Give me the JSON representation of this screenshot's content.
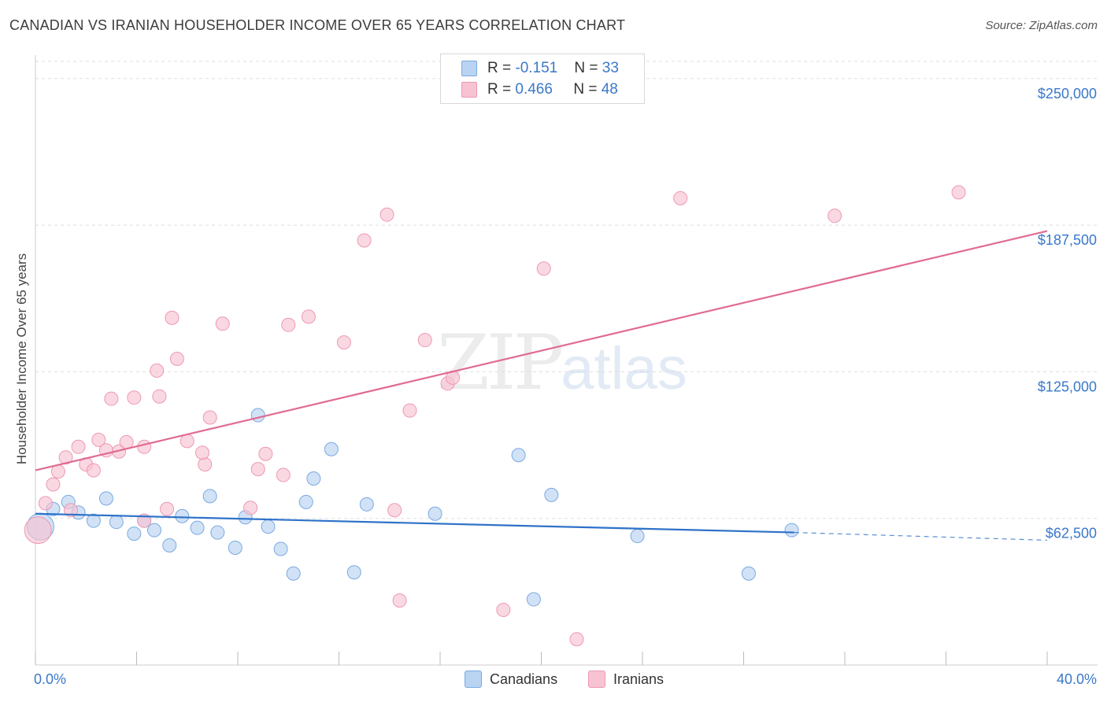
{
  "title": "CANADIAN VS IRANIAN HOUSEHOLDER INCOME OVER 65 YEARS CORRELATION CHART",
  "source": "Source: ZipAtlas.com",
  "watermark": {
    "zip": "ZIP",
    "atlas": "atlas"
  },
  "legend": {
    "rows": [
      {
        "r_label": "R = ",
        "r_value": "-0.151",
        "n_label": "N = ",
        "n_value": "33"
      },
      {
        "r_label": "R = ",
        "r_value": "0.466",
        "n_label": "N = ",
        "n_value": "48"
      }
    ]
  },
  "bottom_legend": {
    "canadians": "Canadians",
    "iranians": "Iranians"
  },
  "colors": {
    "canadian_fill": "#b9d3f2",
    "canadian_stroke": "#7aaae0",
    "canadian_line": "#2e72c8",
    "iranian_fill": "#f7c3d2",
    "iranian_stroke": "#ee98b2",
    "iranian_line": "#e06b93",
    "value_text": "#3a78c9",
    "grid": "#dddddd"
  },
  "chart_data": {
    "type": "scatter",
    "title": "CANADIAN VS IRANIAN HOUSEHOLDER INCOME OVER 65 YEARS CORRELATION CHART",
    "xlabel": "",
    "ylabel": "Householder Income Over 65 years",
    "x_unit": "%",
    "xlim": [
      0,
      40
    ],
    "ylim": [
      0,
      260000
    ],
    "x_tick_labels": [
      "0.0%",
      "40.0%"
    ],
    "y_ticks": [
      62500,
      125000,
      187500,
      250000
    ],
    "y_tick_labels": [
      "$62,500",
      "$125,000",
      "$187,500",
      "$250,000"
    ],
    "series": [
      {
        "name": "Canadians",
        "r": -0.151,
        "n": 33,
        "trend": {
          "x0": 0,
          "y0": 64500,
          "x1": 30,
          "y1": 56500,
          "dashed_to_x": 40,
          "dashed_to_y": 53200
        },
        "points": [
          {
            "x": 0.2,
            "y": 59000,
            "big": true
          },
          {
            "x": 0.7,
            "y": 66500
          },
          {
            "x": 1.3,
            "y": 69500
          },
          {
            "x": 1.7,
            "y": 65000
          },
          {
            "x": 2.3,
            "y": 61500
          },
          {
            "x": 2.8,
            "y": 71000
          },
          {
            "x": 3.2,
            "y": 61000
          },
          {
            "x": 3.9,
            "y": 56000
          },
          {
            "x": 4.3,
            "y": 61500
          },
          {
            "x": 4.7,
            "y": 57500
          },
          {
            "x": 5.3,
            "y": 51000
          },
          {
            "x": 5.8,
            "y": 63500
          },
          {
            "x": 6.4,
            "y": 58500
          },
          {
            "x": 6.9,
            "y": 72000
          },
          {
            "x": 7.2,
            "y": 56500
          },
          {
            "x": 7.9,
            "y": 50000
          },
          {
            "x": 8.3,
            "y": 63000
          },
          {
            "x": 8.8,
            "y": 106500
          },
          {
            "x": 9.2,
            "y": 59000
          },
          {
            "x": 9.7,
            "y": 49500
          },
          {
            "x": 10.2,
            "y": 39000
          },
          {
            "x": 10.7,
            "y": 69500
          },
          {
            "x": 11.0,
            "y": 79500
          },
          {
            "x": 11.7,
            "y": 92000
          },
          {
            "x": 12.6,
            "y": 39500
          },
          {
            "x": 13.1,
            "y": 68500
          },
          {
            "x": 15.8,
            "y": 64500
          },
          {
            "x": 19.1,
            "y": 89500
          },
          {
            "x": 19.7,
            "y": 28000
          },
          {
            "x": 20.4,
            "y": 72500
          },
          {
            "x": 23.8,
            "y": 55000
          },
          {
            "x": 29.9,
            "y": 57500
          },
          {
            "x": 28.2,
            "y": 39000
          }
        ]
      },
      {
        "name": "Iranians",
        "r": 0.466,
        "n": 48,
        "trend": {
          "x0": 0,
          "y0": 83000,
          "x1": 40,
          "y1": 185000
        },
        "points": [
          {
            "x": 0.1,
            "y": 57500,
            "big": true
          },
          {
            "x": 0.4,
            "y": 69000
          },
          {
            "x": 0.7,
            "y": 77000
          },
          {
            "x": 0.9,
            "y": 82500
          },
          {
            "x": 1.2,
            "y": 88500
          },
          {
            "x": 1.4,
            "y": 66000
          },
          {
            "x": 1.7,
            "y": 93000
          },
          {
            "x": 2.0,
            "y": 85500
          },
          {
            "x": 2.3,
            "y": 83000
          },
          {
            "x": 2.5,
            "y": 96000
          },
          {
            "x": 2.8,
            "y": 91500
          },
          {
            "x": 3.0,
            "y": 113500
          },
          {
            "x": 3.3,
            "y": 91000
          },
          {
            "x": 3.6,
            "y": 95000
          },
          {
            "x": 3.9,
            "y": 114000
          },
          {
            "x": 4.3,
            "y": 93000
          },
          {
            "x": 4.3,
            "y": 61500
          },
          {
            "x": 4.8,
            "y": 125500
          },
          {
            "x": 4.9,
            "y": 114500
          },
          {
            "x": 5.2,
            "y": 66500
          },
          {
            "x": 5.4,
            "y": 148000
          },
          {
            "x": 5.6,
            "y": 130500
          },
          {
            "x": 6.0,
            "y": 95500
          },
          {
            "x": 6.7,
            "y": 85500
          },
          {
            "x": 6.6,
            "y": 90500
          },
          {
            "x": 6.9,
            "y": 105500
          },
          {
            "x": 7.4,
            "y": 145500
          },
          {
            "x": 8.5,
            "y": 67000
          },
          {
            "x": 8.8,
            "y": 83500
          },
          {
            "x": 9.1,
            "y": 90000
          },
          {
            "x": 9.8,
            "y": 81000
          },
          {
            "x": 10.0,
            "y": 145000
          },
          {
            "x": 10.8,
            "y": 148500
          },
          {
            "x": 12.2,
            "y": 137500
          },
          {
            "x": 13.0,
            "y": 181000
          },
          {
            "x": 13.9,
            "y": 192000
          },
          {
            "x": 14.2,
            "y": 66000
          },
          {
            "x": 14.4,
            "y": 27500
          },
          {
            "x": 14.8,
            "y": 108500
          },
          {
            "x": 15.4,
            "y": 138500
          },
          {
            "x": 16.3,
            "y": 120000
          },
          {
            "x": 16.5,
            "y": 122500
          },
          {
            "x": 18.5,
            "y": 23500
          },
          {
            "x": 20.1,
            "y": 169000
          },
          {
            "x": 21.4,
            "y": 11000
          },
          {
            "x": 25.5,
            "y": 199000
          },
          {
            "x": 31.6,
            "y": 191500
          },
          {
            "x": 36.5,
            "y": 201500
          }
        ]
      }
    ]
  }
}
